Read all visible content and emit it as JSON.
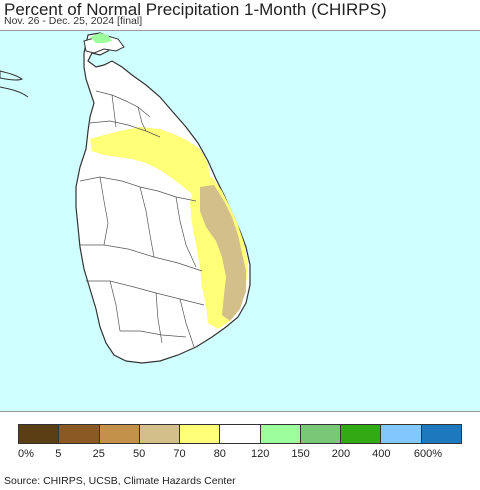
{
  "title": "Percent of Normal Precipitation 1-Month (CHIRPS)",
  "subtitle": "Nov. 26 - Dec. 25, 2024 [final]",
  "source": "Source: CHIRPS, UCSB, Climate Hazards Center",
  "map": {
    "ocean_color": "#cfffff",
    "land_color": "#ffffff",
    "boundary_color": "#555555"
  },
  "legend": {
    "colors": [
      "#5a3f14",
      "#8b5a24",
      "#c4914a",
      "#d2bf89",
      "#ffff78",
      "#ffffff",
      "#9cff9c",
      "#78c878",
      "#32aa14",
      "#82c8ff",
      "#1e78be"
    ],
    "labels": [
      "0%",
      "5",
      "25",
      "50",
      "70",
      "80",
      "120",
      "150",
      "200",
      "400",
      "600%"
    ]
  }
}
